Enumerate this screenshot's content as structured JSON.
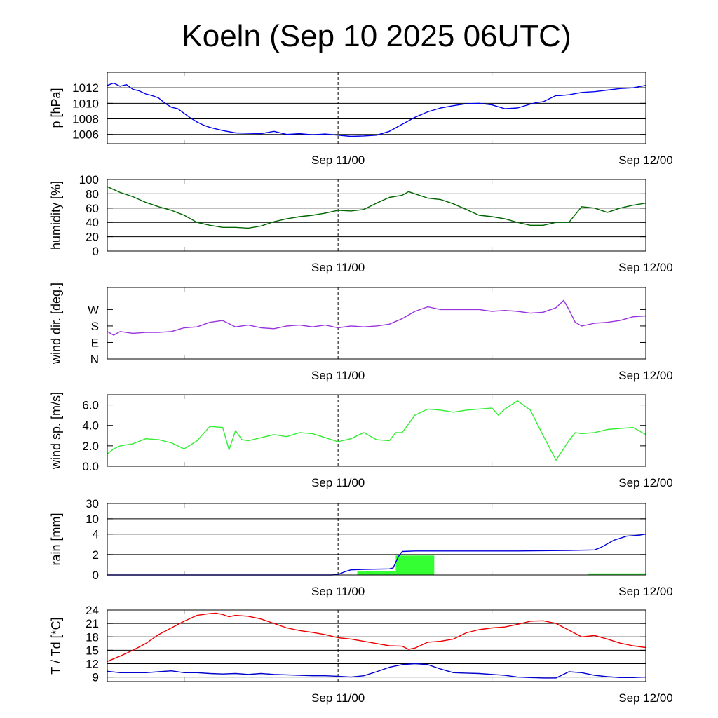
{
  "title": "Koeln (Sep 10 2025 06UTC)",
  "time_axis": {
    "start_hour": 0,
    "end_hour": 42,
    "start_label": "Sep 10 06UTC",
    "marker_hour": 18,
    "minor_tick_hours": [
      6,
      30
    ],
    "labels": [
      {
        "hour": 18,
        "text": "Sep 11/00"
      },
      {
        "hour": 42,
        "text": "Sep 12/00"
      }
    ]
  },
  "chart_data": [
    {
      "id": "pressure",
      "type": "line",
      "ylabel": "p [hPa]",
      "ylim": [
        1004.8,
        1014
      ],
      "yticks": [
        {
          "v": 1006,
          "t": "1006"
        },
        {
          "v": 1008,
          "t": "1008"
        },
        {
          "v": 1010,
          "t": "1010"
        },
        {
          "v": 1012,
          "t": "1012"
        }
      ],
      "grid": true,
      "series": [
        {
          "name": "p",
          "color": "#0000ee",
          "x": [
            0,
            0.5,
            1,
            1.5,
            2,
            2.5,
            3,
            3.5,
            4,
            4.5,
            5,
            5.5,
            6,
            6.5,
            7,
            7.5,
            8,
            9,
            10,
            11,
            12,
            13,
            14,
            15,
            16,
            17,
            18,
            19,
            20,
            21,
            22,
            23,
            24,
            25,
            26,
            27,
            28,
            29,
            30,
            31,
            32,
            33,
            33.5,
            34,
            35,
            35.3,
            36,
            37,
            38,
            39,
            40,
            41,
            42
          ],
          "y": [
            1012.3,
            1012.6,
            1012.2,
            1012.4,
            1011.8,
            1011.6,
            1011.2,
            1011.0,
            1010.7,
            1010.0,
            1009.5,
            1009.3,
            1008.7,
            1008.1,
            1007.6,
            1007.2,
            1006.9,
            1006.5,
            1006.2,
            1006.15,
            1006.1,
            1006.4,
            1006.0,
            1006.1,
            1005.95,
            1006.05,
            1005.9,
            1005.75,
            1005.8,
            1005.9,
            1006.4,
            1007.3,
            1008.2,
            1008.9,
            1009.4,
            1009.7,
            1009.95,
            1010.0,
            1009.8,
            1009.3,
            1009.4,
            1009.9,
            1010.1,
            1010.2,
            1011.0,
            1011.0,
            1011.1,
            1011.4,
            1011.5,
            1011.7,
            1011.9,
            1012.0,
            1012.3
          ]
        }
      ]
    },
    {
      "id": "humidity",
      "type": "line",
      "ylabel": "humidity [%]",
      "ylim": [
        0,
        100
      ],
      "yticks": [
        {
          "v": 0,
          "t": "0"
        },
        {
          "v": 20,
          "t": "20"
        },
        {
          "v": 40,
          "t": "40"
        },
        {
          "v": 60,
          "t": "60"
        },
        {
          "v": 80,
          "t": "80"
        },
        {
          "v": 100,
          "t": "100"
        }
      ],
      "grid": true,
      "series": [
        {
          "name": "humidity",
          "color": "#006600",
          "x": [
            0,
            1,
            2,
            3,
            4,
            5,
            6,
            7,
            8,
            9,
            10,
            11,
            12,
            13,
            14,
            15,
            16,
            17,
            18,
            19,
            20,
            21,
            22,
            23,
            23.5,
            24,
            25,
            26,
            27,
            28,
            29,
            30,
            31,
            32,
            33,
            34,
            35,
            36,
            37,
            38,
            39,
            40,
            41,
            42
          ],
          "y": [
            90,
            82,
            76,
            68,
            62,
            57,
            50,
            40,
            36,
            33,
            33,
            32,
            35,
            41,
            45,
            48,
            50,
            53,
            57,
            56,
            58,
            67,
            75,
            78,
            83,
            80,
            74,
            72,
            66,
            58,
            50,
            48,
            45,
            40,
            36,
            36,
            40,
            40,
            62,
            60,
            54,
            60,
            64,
            67
          ]
        }
      ]
    },
    {
      "id": "wind_direction",
      "type": "line",
      "ylabel": "wind dir. [deg.]",
      "ylim": [
        0,
        390
      ],
      "yticks": [
        {
          "v": 0,
          "t": "N"
        },
        {
          "v": 90,
          "t": "E"
        },
        {
          "v": 180,
          "t": "S"
        },
        {
          "v": 270,
          "t": "W"
        }
      ],
      "grid": false,
      "series": [
        {
          "name": "direction",
          "color": "#9933dd",
          "x": [
            0,
            0.5,
            1,
            2,
            3,
            4,
            5,
            6,
            7,
            8,
            9,
            10,
            11,
            12,
            13,
            14,
            15,
            16,
            17,
            18,
            19,
            20,
            21,
            22,
            23,
            24,
            25,
            26,
            27,
            28,
            29,
            30,
            31,
            32,
            33,
            34,
            35,
            35.6,
            36,
            36.5,
            37,
            38,
            39,
            40,
            41,
            42
          ],
          "y": [
            150,
            130,
            150,
            140,
            145,
            145,
            150,
            170,
            175,
            200,
            210,
            175,
            185,
            170,
            165,
            180,
            185,
            175,
            185,
            170,
            180,
            175,
            180,
            190,
            220,
            260,
            285,
            270,
            270,
            270,
            270,
            260,
            265,
            260,
            250,
            255,
            280,
            320,
            270,
            200,
            180,
            195,
            200,
            210,
            230,
            235
          ]
        }
      ]
    },
    {
      "id": "wind_speed",
      "type": "line",
      "ylabel": "wind sp. [m/s]",
      "ylim": [
        0,
        7
      ],
      "yticks": [
        {
          "v": 0,
          "t": "0.0"
        },
        {
          "v": 2,
          "t": "2.0"
        },
        {
          "v": 4,
          "t": "4.0"
        },
        {
          "v": 6,
          "t": "6.0"
        }
      ],
      "grid": false,
      "series": [
        {
          "name": "speed",
          "color": "#33ee33",
          "x": [
            0,
            0.5,
            1,
            2,
            3,
            4,
            5,
            6,
            7,
            8,
            9,
            9.5,
            10,
            10.5,
            11,
            12,
            13,
            14,
            15,
            16,
            17,
            18,
            19,
            20,
            21,
            22,
            22.5,
            23,
            24,
            25,
            26,
            27,
            28,
            29,
            30,
            30.5,
            31,
            32,
            33,
            34,
            35,
            36,
            36.5,
            37,
            38,
            39,
            40,
            41,
            42
          ],
          "y": [
            1.2,
            1.7,
            2.0,
            2.2,
            2.7,
            2.6,
            2.3,
            1.7,
            2.5,
            3.9,
            3.8,
            1.6,
            3.5,
            2.6,
            2.5,
            2.8,
            3.1,
            2.9,
            3.3,
            3.2,
            2.8,
            2.4,
            2.7,
            3.3,
            2.6,
            2.5,
            3.3,
            3.3,
            5.0,
            5.6,
            5.5,
            5.3,
            5.5,
            5.6,
            5.7,
            5.0,
            5.6,
            6.4,
            5.5,
            3.0,
            0.6,
            2.5,
            3.3,
            3.2,
            3.3,
            3.6,
            3.7,
            3.8,
            3.1
          ]
        }
      ]
    },
    {
      "id": "rain",
      "type": "bar+line",
      "ylabel": "rain [mm]",
      "ylim": [
        0,
        7
      ],
      "yticks": [
        {
          "v": 0,
          "t": "0"
        },
        {
          "v": 2,
          "t": "2"
        },
        {
          "v": 4,
          "t": "4"
        },
        {
          "v": 5.5,
          "t": "10"
        },
        {
          "v": 7,
          "t": "30"
        }
      ],
      "scale_note": "nonlinear",
      "grid": true,
      "bars": {
        "name": "rain per period",
        "color": "#33ff33",
        "items": [
          {
            "start": 19.5,
            "end": 22.5,
            "value": 0.35
          },
          {
            "start": 22.5,
            "end": 25.5,
            "value": 1.9
          },
          {
            "start": 37.5,
            "end": 42,
            "value": 0.15
          }
        ]
      },
      "series": [
        {
          "name": "accumulated",
          "color": "#0000dd",
          "x": [
            0,
            17.5,
            18,
            18.5,
            19,
            20,
            22,
            22.3,
            22.7,
            23,
            24,
            28,
            32,
            36,
            38,
            38.5,
            39.5,
            40.5,
            41.5,
            42
          ],
          "y": [
            0,
            0,
            0.05,
            0.3,
            0.5,
            0.55,
            0.6,
            0.7,
            1.8,
            2.3,
            2.35,
            2.35,
            2.35,
            2.4,
            2.45,
            2.7,
            3.4,
            3.8,
            3.9,
            4.0
          ]
        }
      ]
    },
    {
      "id": "temperature",
      "type": "line",
      "ylabel": "T / Td [*C]",
      "ylim": [
        8,
        24
      ],
      "yticks": [
        {
          "v": 9,
          "t": "9"
        },
        {
          "v": 12,
          "t": "12"
        },
        {
          "v": 15,
          "t": "15"
        },
        {
          "v": 18,
          "t": "18"
        },
        {
          "v": 21,
          "t": "21"
        },
        {
          "v": 24,
          "t": "24"
        }
      ],
      "grid": true,
      "series": [
        {
          "name": "T",
          "color": "#ee0000",
          "x": [
            0,
            1,
            2,
            3,
            4,
            5,
            6,
            7,
            8,
            8.5,
            9,
            9.5,
            10,
            11,
            12,
            13,
            14,
            15,
            16,
            17,
            18,
            19,
            20,
            21,
            22,
            23,
            23.5,
            24,
            25,
            26,
            27,
            28,
            29,
            30,
            31,
            32,
            33,
            34,
            35,
            36,
            37,
            38,
            39,
            40,
            41,
            42
          ],
          "y": [
            12.5,
            13.7,
            15.0,
            16.5,
            18.5,
            20.0,
            21.5,
            22.8,
            23.2,
            23.3,
            23.0,
            22.5,
            22.8,
            22.6,
            22.0,
            21.0,
            20.0,
            19.4,
            19.0,
            18.5,
            17.8,
            17.5,
            17.0,
            16.5,
            16.0,
            15.9,
            15.2,
            15.5,
            16.8,
            17.0,
            17.5,
            18.9,
            19.6,
            20.0,
            20.2,
            20.8,
            21.5,
            21.6,
            21.0,
            19.5,
            18.0,
            18.3,
            17.5,
            16.6,
            16.0,
            15.6
          ]
        },
        {
          "name": "Td",
          "color": "#0000cc",
          "x": [
            0,
            1,
            2,
            3,
            4,
            5,
            6,
            7,
            8,
            9,
            10,
            11,
            12,
            13,
            14,
            15,
            16,
            17,
            18,
            19,
            20,
            21,
            22,
            23,
            24,
            25,
            26,
            27,
            28,
            29,
            30,
            31,
            32,
            33,
            34,
            35,
            36,
            37,
            38,
            39,
            40,
            41,
            42
          ],
          "y": [
            10.3,
            10.0,
            10.0,
            10.0,
            10.2,
            10.4,
            10.0,
            10.0,
            9.8,
            9.7,
            9.8,
            9.6,
            9.8,
            9.6,
            9.5,
            9.4,
            9.3,
            9.3,
            9.2,
            9.0,
            9.3,
            10.2,
            11.2,
            11.8,
            12.0,
            11.8,
            10.8,
            10.0,
            9.9,
            9.8,
            9.6,
            9.4,
            9.0,
            8.9,
            8.8,
            8.8,
            10.2,
            10.0,
            9.4,
            9.1,
            8.9,
            8.9,
            9.0
          ]
        }
      ]
    }
  ]
}
